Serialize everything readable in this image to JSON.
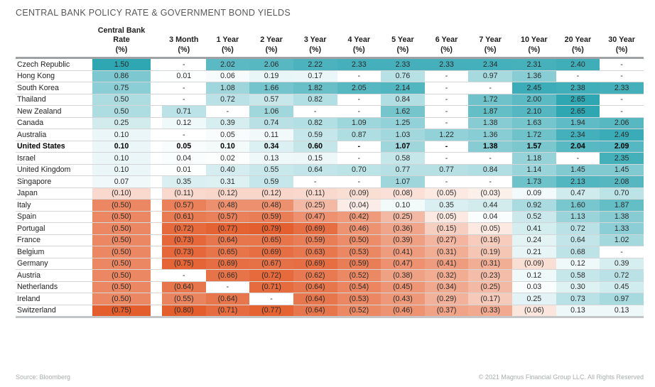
{
  "title": "CENTRAL BANK POLICY RATE & GOVERNMENT BOND YIELDS",
  "header": {
    "columns": [
      {
        "lines": [
          "Central Bank",
          "Rate",
          "(%)"
        ]
      },
      {
        "lines": [
          "3 Month",
          "(%)"
        ]
      },
      {
        "lines": [
          "1 Year",
          "(%)"
        ]
      },
      {
        "lines": [
          "2 Year",
          "(%)"
        ]
      },
      {
        "lines": [
          "3 Year",
          "(%)"
        ]
      },
      {
        "lines": [
          "4 Year",
          "(%)"
        ]
      },
      {
        "lines": [
          "5 Year",
          "(%)"
        ]
      },
      {
        "lines": [
          "6 Year",
          "(%)"
        ]
      },
      {
        "lines": [
          "7 Year",
          "(%)"
        ]
      },
      {
        "lines": [
          "10 Year",
          "(%)"
        ]
      },
      {
        "lines": [
          "20 Year",
          "(%)"
        ]
      },
      {
        "lines": [
          "30 Year",
          "(%)"
        ]
      }
    ]
  },
  "chart_data": {
    "type": "heatmap",
    "title": "CENTRAL BANK POLICY RATE & GOVERNMENT BOND YIELDS",
    "unit": "%",
    "negative_format": "parentheses",
    "missing_format": "-",
    "bold_row": "United States",
    "columns": [
      "Central Bank Rate (%)",
      "3 Month (%)",
      "1 Year (%)",
      "2 Year (%)",
      "3 Year (%)",
      "4 Year (%)",
      "5 Year (%)",
      "6 Year (%)",
      "7 Year (%)",
      "10 Year (%)",
      "20 Year (%)",
      "30 Year (%)"
    ],
    "countries": [
      "Czech Republic",
      "Hong Kong",
      "South Korea",
      "Thailand",
      "New Zealand",
      "Canada",
      "Australia",
      "United States",
      "Israel",
      "United Kingdom",
      "Singapore",
      "Japan",
      "Italy",
      "Spain",
      "Portugal",
      "France",
      "Belgium",
      "Germany",
      "Austria",
      "Netherlands",
      "Ireland",
      "Switzerland"
    ],
    "values": [
      [
        1.5,
        null,
        2.02,
        2.06,
        2.22,
        2.33,
        2.33,
        2.33,
        2.34,
        2.31,
        2.4,
        null
      ],
      [
        0.86,
        0.01,
        0.06,
        0.19,
        0.17,
        null,
        0.76,
        null,
        0.97,
        1.36,
        null,
        null
      ],
      [
        0.75,
        null,
        1.08,
        1.66,
        1.82,
        2.05,
        2.14,
        null,
        null,
        2.45,
        2.38,
        2.33
      ],
      [
        0.5,
        null,
        0.72,
        0.57,
        0.82,
        null,
        0.84,
        null,
        1.72,
        2.0,
        2.65,
        null
      ],
      [
        0.5,
        0.71,
        null,
        1.06,
        null,
        null,
        1.62,
        null,
        1.87,
        2.1,
        2.65,
        null
      ],
      [
        0.25,
        0.12,
        0.39,
        0.74,
        0.82,
        1.09,
        1.25,
        null,
        1.38,
        1.63,
        1.94,
        2.06
      ],
      [
        0.1,
        null,
        0.05,
        0.11,
        0.59,
        0.87,
        1.03,
        1.22,
        1.36,
        1.72,
        2.34,
        2.49
      ],
      [
        0.1,
        0.05,
        0.1,
        0.34,
        0.6,
        null,
        1.07,
        null,
        1.38,
        1.57,
        2.04,
        2.09
      ],
      [
        0.1,
        0.04,
        0.02,
        0.13,
        0.15,
        null,
        0.58,
        null,
        null,
        1.18,
        null,
        2.35
      ],
      [
        0.1,
        0.01,
        0.4,
        0.55,
        0.64,
        0.7,
        0.77,
        0.77,
        0.84,
        1.14,
        1.45,
        1.45
      ],
      [
        0.07,
        0.35,
        0.31,
        0.59,
        null,
        null,
        1.07,
        null,
        null,
        1.73,
        2.13,
        2.08
      ],
      [
        -0.1,
        -0.11,
        -0.12,
        -0.12,
        -0.11,
        -0.09,
        -0.08,
        -0.05,
        -0.03,
        0.09,
        0.47,
        0.7
      ],
      [
        -0.5,
        -0.57,
        -0.48,
        -0.48,
        -0.25,
        -0.04,
        0.1,
        0.35,
        0.44,
        0.92,
        1.6,
        1.87
      ],
      [
        -0.5,
        -0.61,
        -0.57,
        -0.59,
        -0.47,
        -0.42,
        -0.25,
        -0.05,
        0.04,
        0.52,
        1.13,
        1.38
      ],
      [
        -0.5,
        -0.72,
        -0.77,
        -0.79,
        -0.69,
        -0.46,
        -0.36,
        -0.15,
        -0.05,
        0.41,
        0.72,
        1.33
      ],
      [
        -0.5,
        -0.73,
        -0.64,
        -0.65,
        -0.59,
        -0.5,
        -0.39,
        -0.27,
        -0.16,
        0.24,
        0.64,
        1.02
      ],
      [
        -0.5,
        -0.73,
        -0.65,
        -0.69,
        -0.63,
        -0.53,
        -0.41,
        -0.31,
        -0.19,
        0.21,
        0.68,
        null
      ],
      [
        -0.5,
        -0.75,
        -0.69,
        -0.67,
        -0.69,
        -0.59,
        -0.47,
        -0.41,
        -0.31,
        -0.09,
        0.12,
        0.39
      ],
      [
        -0.5,
        null,
        -0.66,
        -0.72,
        -0.62,
        -0.52,
        -0.38,
        -0.32,
        -0.23,
        0.12,
        0.58,
        0.72
      ],
      [
        -0.5,
        -0.64,
        null,
        -0.71,
        -0.64,
        -0.54,
        -0.45,
        -0.34,
        -0.25,
        0.03,
        0.3,
        0.45
      ],
      [
        -0.5,
        -0.55,
        -0.64,
        null,
        -0.64,
        -0.53,
        -0.43,
        -0.29,
        -0.17,
        0.25,
        0.73,
        0.97
      ],
      [
        -0.75,
        -0.8,
        -0.71,
        -0.77,
        -0.64,
        -0.52,
        -0.46,
        -0.37,
        -0.33,
        -0.06,
        0.13,
        0.13
      ]
    ],
    "color_scale": {
      "positive_color": "#2fa7b3",
      "negative_color": "#e45e2d",
      "missing_color": "#ffffff",
      "cb_positive_max": 1.5,
      "cb_negative_min": -0.75,
      "yield_positive_max": 2.65,
      "yield_negative_min": -0.8
    },
    "legend_position": "none",
    "grid": "row-dividers"
  },
  "footer": {
    "source": "Source: Bloomberg",
    "copyright": "© 2021 Magnus Financial Group LLC. All Rights Reserved"
  }
}
